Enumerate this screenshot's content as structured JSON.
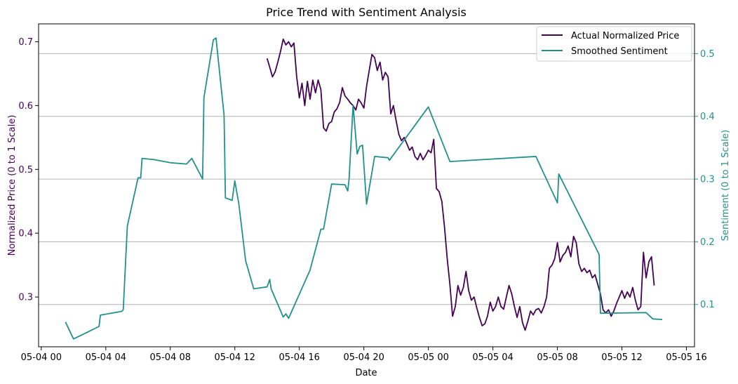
{
  "chart_data": {
    "type": "line",
    "title": "Price Trend with Sentiment Analysis",
    "xlabel": "Date",
    "ylabel_left": "Normalized Price (0 to 1 Scale)",
    "ylabel_right": "Sentiment (0 to 1 Scale)",
    "x_ticks": [
      "05-04 00",
      "05-04 04",
      "05-04 08",
      "05-04 12",
      "05-04 16",
      "05-04 20",
      "05-05 00",
      "05-05 04",
      "05-05 08",
      "05-05 12",
      "05-05 16"
    ],
    "y_left_ticks": [
      "0.3",
      "0.4",
      "0.5",
      "0.6",
      "0.7"
    ],
    "y_right_ticks": [
      "0.1",
      "0.2",
      "0.3",
      "0.4",
      "0.5"
    ],
    "xlim": [
      "2024-05-03T23:50",
      "2024-05-05T16:30"
    ],
    "ylim_left": [
      0.222,
      0.728
    ],
    "ylim_right": [
      0.0325,
      0.5475
    ],
    "grid": "horizontal (right axis)",
    "legend_position": "top-right",
    "colors": {
      "price": "#440154",
      "sentiment": "#21918c",
      "grid": "#b0b0b0"
    },
    "series": [
      {
        "name": "Actual Normalized Price",
        "axis": "left",
        "points": [
          [
            "2024-05-04T14:00",
            0.674
          ],
          [
            "2024-05-04T14:10",
            0.66
          ],
          [
            "2024-05-04T14:20",
            0.645
          ],
          [
            "2024-05-04T14:30",
            0.653
          ],
          [
            "2024-05-04T14:40",
            0.668
          ],
          [
            "2024-05-04T14:50",
            0.685
          ],
          [
            "2024-05-04T15:00",
            0.704
          ],
          [
            "2024-05-04T15:10",
            0.695
          ],
          [
            "2024-05-04T15:20",
            0.7
          ],
          [
            "2024-05-04T15:30",
            0.692
          ],
          [
            "2024-05-04T15:40",
            0.698
          ],
          [
            "2024-05-04T15:50",
            0.645
          ],
          [
            "2024-05-04T16:00",
            0.612
          ],
          [
            "2024-05-04T16:10",
            0.635
          ],
          [
            "2024-05-04T16:20",
            0.6
          ],
          [
            "2024-05-04T16:30",
            0.638
          ],
          [
            "2024-05-04T16:40",
            0.61
          ],
          [
            "2024-05-04T16:50",
            0.64
          ],
          [
            "2024-05-04T17:00",
            0.62
          ],
          [
            "2024-05-04T17:10",
            0.64
          ],
          [
            "2024-05-04T17:20",
            0.625
          ],
          [
            "2024-05-04T17:30",
            0.565
          ],
          [
            "2024-05-04T17:40",
            0.56
          ],
          [
            "2024-05-04T17:50",
            0.572
          ],
          [
            "2024-05-04T18:00",
            0.575
          ],
          [
            "2024-05-04T18:10",
            0.59
          ],
          [
            "2024-05-04T18:20",
            0.595
          ],
          [
            "2024-05-04T18:30",
            0.605
          ],
          [
            "2024-05-04T18:40",
            0.628
          ],
          [
            "2024-05-04T18:50",
            0.615
          ],
          [
            "2024-05-04T19:00",
            0.61
          ],
          [
            "2024-05-04T19:10",
            0.604
          ],
          [
            "2024-05-04T19:20",
            0.6
          ],
          [
            "2024-05-04T19:30",
            0.593
          ],
          [
            "2024-05-04T19:40",
            0.61
          ],
          [
            "2024-05-04T19:50",
            0.604
          ],
          [
            "2024-05-04T20:00",
            0.596
          ],
          [
            "2024-05-04T20:10",
            0.63
          ],
          [
            "2024-05-04T20:20",
            0.655
          ],
          [
            "2024-05-04T20:30",
            0.68
          ],
          [
            "2024-05-04T20:40",
            0.675
          ],
          [
            "2024-05-04T20:50",
            0.655
          ],
          [
            "2024-05-04T21:00",
            0.668
          ],
          [
            "2024-05-04T21:10",
            0.64
          ],
          [
            "2024-05-04T21:20",
            0.652
          ],
          [
            "2024-05-04T21:30",
            0.645
          ],
          [
            "2024-05-04T21:40",
            0.587
          ],
          [
            "2024-05-04T21:50",
            0.6
          ],
          [
            "2024-05-04T22:00",
            0.576
          ],
          [
            "2024-05-04T22:10",
            0.555
          ],
          [
            "2024-05-04T22:20",
            0.545
          ],
          [
            "2024-05-04T22:30",
            0.55
          ],
          [
            "2024-05-04T22:40",
            0.54
          ],
          [
            "2024-05-04T22:50",
            0.53
          ],
          [
            "2024-05-04T23:00",
            0.535
          ],
          [
            "2024-05-04T23:10",
            0.52
          ],
          [
            "2024-05-04T23:20",
            0.515
          ],
          [
            "2024-05-04T23:30",
            0.525
          ],
          [
            "2024-05-04T23:40",
            0.515
          ],
          [
            "2024-05-04T23:50",
            0.522
          ],
          [
            "2024-05-05T00:00",
            0.53
          ],
          [
            "2024-05-05T00:10",
            0.526
          ],
          [
            "2024-05-05T00:20",
            0.547
          ],
          [
            "2024-05-05T00:30",
            0.47
          ],
          [
            "2024-05-05T00:40",
            0.465
          ],
          [
            "2024-05-05T00:50",
            0.45
          ],
          [
            "2024-05-05T01:00",
            0.41
          ],
          [
            "2024-05-05T01:10",
            0.36
          ],
          [
            "2024-05-05T01:20",
            0.32
          ],
          [
            "2024-05-05T01:30",
            0.27
          ],
          [
            "2024-05-05T01:40",
            0.285
          ],
          [
            "2024-05-05T01:50",
            0.318
          ],
          [
            "2024-05-05T02:00",
            0.303
          ],
          [
            "2024-05-05T02:10",
            0.315
          ],
          [
            "2024-05-05T02:20",
            0.34
          ],
          [
            "2024-05-05T02:30",
            0.31
          ],
          [
            "2024-05-05T02:40",
            0.295
          ],
          [
            "2024-05-05T02:50",
            0.3
          ],
          [
            "2024-05-05T03:00",
            0.283
          ],
          [
            "2024-05-05T03:10",
            0.268
          ],
          [
            "2024-05-05T03:20",
            0.255
          ],
          [
            "2024-05-05T03:30",
            0.258
          ],
          [
            "2024-05-05T03:40",
            0.27
          ],
          [
            "2024-05-05T03:50",
            0.292
          ],
          [
            "2024-05-05T04:00",
            0.278
          ],
          [
            "2024-05-05T04:10",
            0.285
          ],
          [
            "2024-05-05T04:20",
            0.3
          ],
          [
            "2024-05-05T04:30",
            0.285
          ],
          [
            "2024-05-05T04:40",
            0.281
          ],
          [
            "2024-05-05T04:50",
            0.3
          ],
          [
            "2024-05-05T05:00",
            0.318
          ],
          [
            "2024-05-05T05:10",
            0.305
          ],
          [
            "2024-05-05T05:20",
            0.285
          ],
          [
            "2024-05-05T05:30",
            0.268
          ],
          [
            "2024-05-05T05:40",
            0.285
          ],
          [
            "2024-05-05T05:50",
            0.26
          ],
          [
            "2024-05-05T06:00",
            0.248
          ],
          [
            "2024-05-05T06:10",
            0.262
          ],
          [
            "2024-05-05T06:20",
            0.278
          ],
          [
            "2024-05-05T06:30",
            0.272
          ],
          [
            "2024-05-05T06:40",
            0.28
          ],
          [
            "2024-05-05T06:50",
            0.282
          ],
          [
            "2024-05-05T07:00",
            0.275
          ],
          [
            "2024-05-05T07:10",
            0.285
          ],
          [
            "2024-05-05T07:20",
            0.3
          ],
          [
            "2024-05-05T07:30",
            0.345
          ],
          [
            "2024-05-05T07:40",
            0.35
          ],
          [
            "2024-05-05T07:50",
            0.36
          ],
          [
            "2024-05-05T08:00",
            0.385
          ],
          [
            "2024-05-05T08:10",
            0.355
          ],
          [
            "2024-05-05T08:20",
            0.365
          ],
          [
            "2024-05-05T08:30",
            0.37
          ],
          [
            "2024-05-05T08:40",
            0.38
          ],
          [
            "2024-05-05T08:50",
            0.363
          ],
          [
            "2024-05-05T09:00",
            0.395
          ],
          [
            "2024-05-05T09:10",
            0.385
          ],
          [
            "2024-05-05T09:20",
            0.352
          ],
          [
            "2024-05-05T09:30",
            0.34
          ],
          [
            "2024-05-05T09:40",
            0.345
          ],
          [
            "2024-05-05T09:50",
            0.338
          ],
          [
            "2024-05-05T10:00",
            0.342
          ],
          [
            "2024-05-05T10:10",
            0.33
          ],
          [
            "2024-05-05T10:20",
            0.335
          ],
          [
            "2024-05-05T10:30",
            0.32
          ],
          [
            "2024-05-05T10:40",
            0.305
          ],
          [
            "2024-05-05T10:50",
            0.28
          ],
          [
            "2024-05-05T11:00",
            0.275
          ],
          [
            "2024-05-05T11:10",
            0.28
          ],
          [
            "2024-05-05T11:20",
            0.27
          ],
          [
            "2024-05-05T11:30",
            0.278
          ],
          [
            "2024-05-05T11:40",
            0.29
          ],
          [
            "2024-05-05T11:50",
            0.3
          ],
          [
            "2024-05-05T12:00",
            0.31
          ],
          [
            "2024-05-05T12:10",
            0.298
          ],
          [
            "2024-05-05T12:20",
            0.308
          ],
          [
            "2024-05-05T12:30",
            0.3
          ],
          [
            "2024-05-05T12:40",
            0.315
          ],
          [
            "2024-05-05T12:50",
            0.295
          ],
          [
            "2024-05-05T13:00",
            0.28
          ],
          [
            "2024-05-05T13:10",
            0.285
          ],
          [
            "2024-05-05T13:20",
            0.37
          ],
          [
            "2024-05-05T13:30",
            0.33
          ],
          [
            "2024-05-05T13:40",
            0.355
          ],
          [
            "2024-05-05T13:50",
            0.363
          ],
          [
            "2024-05-05T14:00",
            0.318
          ]
        ]
      },
      {
        "name": "Smoothed Sentiment",
        "axis": "right",
        "points": [
          [
            "2024-05-04T01:30",
            0.072
          ],
          [
            "2024-05-04T02:00",
            0.045
          ],
          [
            "2024-05-04T03:35",
            0.065
          ],
          [
            "2024-05-04T03:40",
            0.083
          ],
          [
            "2024-05-04T05:00",
            0.089
          ],
          [
            "2024-05-04T05:05",
            0.092
          ],
          [
            "2024-05-04T05:20",
            0.225
          ],
          [
            "2024-05-04T06:00",
            0.302
          ],
          [
            "2024-05-04T06:10",
            0.302
          ],
          [
            "2024-05-04T06:15",
            0.333
          ],
          [
            "2024-05-04T07:00",
            0.331
          ],
          [
            "2024-05-04T08:00",
            0.326
          ],
          [
            "2024-05-04T09:00",
            0.324
          ],
          [
            "2024-05-04T09:20",
            0.333
          ],
          [
            "2024-05-04T10:00",
            0.3
          ],
          [
            "2024-05-04T10:05",
            0.43
          ],
          [
            "2024-05-04T10:40",
            0.522
          ],
          [
            "2024-05-04T10:50",
            0.525
          ],
          [
            "2024-05-04T11:20",
            0.402
          ],
          [
            "2024-05-04T11:25",
            0.27
          ],
          [
            "2024-05-04T11:50",
            0.266
          ],
          [
            "2024-05-04T12:00",
            0.297
          ],
          [
            "2024-05-04T12:15",
            0.26
          ],
          [
            "2024-05-04T12:40",
            0.17
          ],
          [
            "2024-05-04T13:10",
            0.125
          ],
          [
            "2024-05-04T14:00",
            0.128
          ],
          [
            "2024-05-04T14:10",
            0.14
          ],
          [
            "2024-05-04T14:15",
            0.125
          ],
          [
            "2024-05-04T14:50",
            0.09
          ],
          [
            "2024-05-04T15:00",
            0.08
          ],
          [
            "2024-05-04T15:10",
            0.085
          ],
          [
            "2024-05-04T15:20",
            0.078
          ],
          [
            "2024-05-04T16:40",
            0.155
          ],
          [
            "2024-05-04T17:20",
            0.22
          ],
          [
            "2024-05-04T17:30",
            0.22
          ],
          [
            "2024-05-04T18:00",
            0.292
          ],
          [
            "2024-05-04T18:50",
            0.291
          ],
          [
            "2024-05-04T19:00",
            0.281
          ],
          [
            "2024-05-04T19:05",
            0.3
          ],
          [
            "2024-05-04T19:20",
            0.418
          ],
          [
            "2024-05-04T19:35",
            0.34
          ],
          [
            "2024-05-04T19:45",
            0.352
          ],
          [
            "2024-05-04T19:55",
            0.354
          ],
          [
            "2024-05-04T20:10",
            0.26
          ],
          [
            "2024-05-04T20:40",
            0.336
          ],
          [
            "2024-05-04T21:30",
            0.334
          ],
          [
            "2024-05-04T21:35",
            0.33
          ],
          [
            "2024-05-05T00:00",
            0.415
          ],
          [
            "2024-05-05T01:20",
            0.328
          ],
          [
            "2024-05-05T06:40",
            0.336
          ],
          [
            "2024-05-05T08:00",
            0.262
          ],
          [
            "2024-05-05T08:05",
            0.308
          ],
          [
            "2024-05-05T10:35",
            0.18
          ],
          [
            "2024-05-05T10:40",
            0.086
          ],
          [
            "2024-05-05T13:30",
            0.087
          ],
          [
            "2024-05-05T13:55",
            0.077
          ],
          [
            "2024-05-05T14:30",
            0.076
          ]
        ]
      }
    ]
  }
}
